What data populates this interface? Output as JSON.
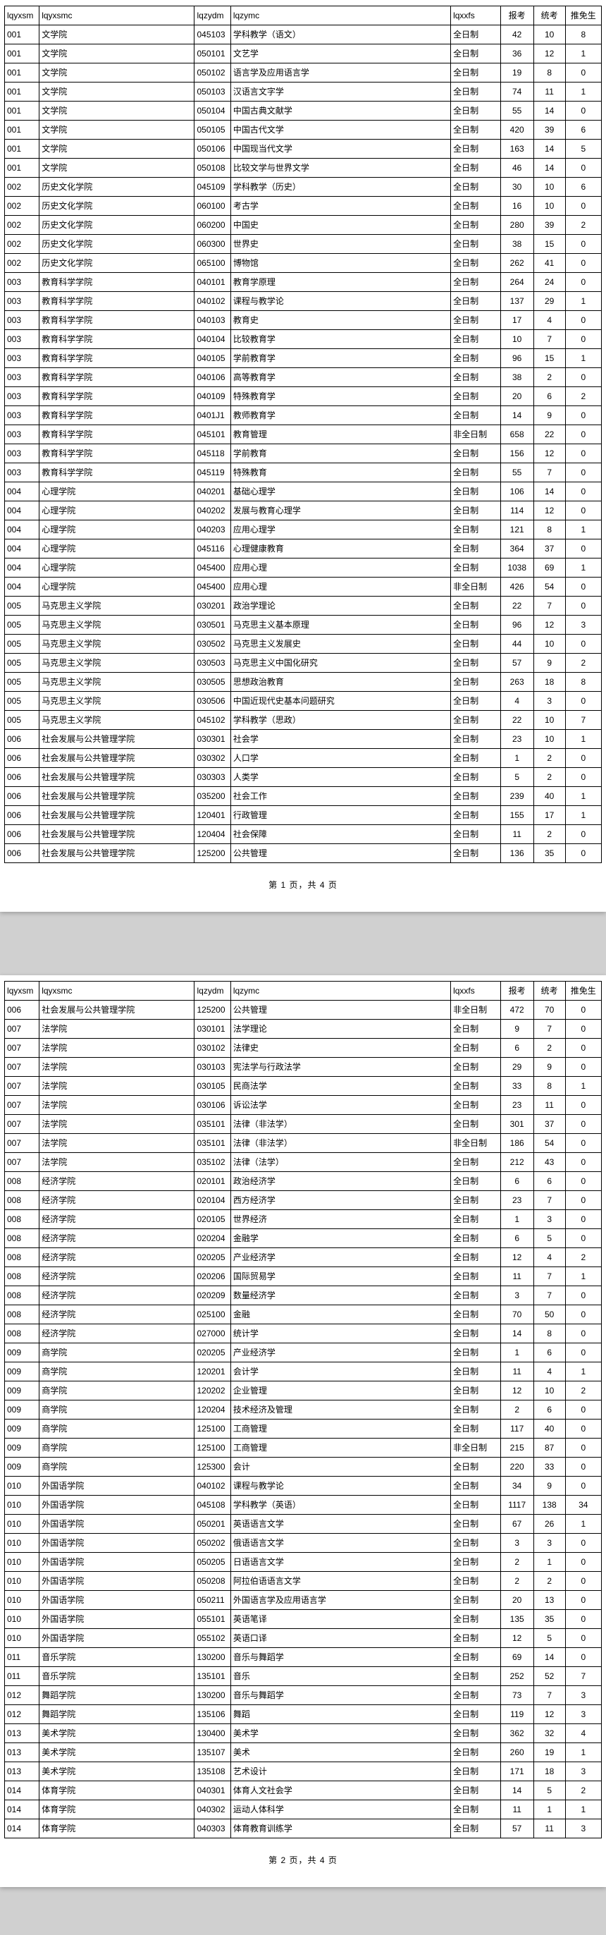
{
  "headers": {
    "lqyxsm": "lqyxsm",
    "lqyxsmc": "lqyxsmc",
    "lqzydm": "lqzydm",
    "lqzymc": "lqzymc",
    "lqxxfs": "lqxxfs",
    "baokao": "报考",
    "tongkao": "统考",
    "tuimiansheng": "推免生"
  },
  "footer": {
    "page1": "第 1 页，共 4 页",
    "page2": "第 2 页，共 4 页"
  },
  "page1_rows": [
    [
      "001",
      "文学院",
      "045103",
      "学科教学（语文）",
      "全日制",
      "42",
      "10",
      "8"
    ],
    [
      "001",
      "文学院",
      "050101",
      "文艺学",
      "全日制",
      "36",
      "12",
      "1"
    ],
    [
      "001",
      "文学院",
      "050102",
      "语言学及应用语言学",
      "全日制",
      "19",
      "8",
      "0"
    ],
    [
      "001",
      "文学院",
      "050103",
      "汉语言文字学",
      "全日制",
      "74",
      "11",
      "1"
    ],
    [
      "001",
      "文学院",
      "050104",
      "中国古典文献学",
      "全日制",
      "55",
      "14",
      "0"
    ],
    [
      "001",
      "文学院",
      "050105",
      "中国古代文学",
      "全日制",
      "420",
      "39",
      "6"
    ],
    [
      "001",
      "文学院",
      "050106",
      "中国现当代文学",
      "全日制",
      "163",
      "14",
      "5"
    ],
    [
      "001",
      "文学院",
      "050108",
      "比较文学与世界文学",
      "全日制",
      "46",
      "14",
      "0"
    ],
    [
      "002",
      "历史文化学院",
      "045109",
      "学科教学（历史）",
      "全日制",
      "30",
      "10",
      "6"
    ],
    [
      "002",
      "历史文化学院",
      "060100",
      "考古学",
      "全日制",
      "16",
      "10",
      "0"
    ],
    [
      "002",
      "历史文化学院",
      "060200",
      "中国史",
      "全日制",
      "280",
      "39",
      "2"
    ],
    [
      "002",
      "历史文化学院",
      "060300",
      "世界史",
      "全日制",
      "38",
      "15",
      "0"
    ],
    [
      "002",
      "历史文化学院",
      "065100",
      "博物馆",
      "全日制",
      "262",
      "41",
      "0"
    ],
    [
      "003",
      "教育科学学院",
      "040101",
      "教育学原理",
      "全日制",
      "264",
      "24",
      "0"
    ],
    [
      "003",
      "教育科学学院",
      "040102",
      "课程与教学论",
      "全日制",
      "137",
      "29",
      "1"
    ],
    [
      "003",
      "教育科学学院",
      "040103",
      "教育史",
      "全日制",
      "17",
      "4",
      "0"
    ],
    [
      "003",
      "教育科学学院",
      "040104",
      "比较教育学",
      "全日制",
      "10",
      "7",
      "0"
    ],
    [
      "003",
      "教育科学学院",
      "040105",
      "学前教育学",
      "全日制",
      "96",
      "15",
      "1"
    ],
    [
      "003",
      "教育科学学院",
      "040106",
      "高等教育学",
      "全日制",
      "38",
      "2",
      "0"
    ],
    [
      "003",
      "教育科学学院",
      "040109",
      "特殊教育学",
      "全日制",
      "20",
      "6",
      "2"
    ],
    [
      "003",
      "教育科学学院",
      "0401J1",
      "教师教育学",
      "全日制",
      "14",
      "9",
      "0"
    ],
    [
      "003",
      "教育科学学院",
      "045101",
      "教育管理",
      "非全日制",
      "658",
      "22",
      "0"
    ],
    [
      "003",
      "教育科学学院",
      "045118",
      "学前教育",
      "全日制",
      "156",
      "12",
      "0"
    ],
    [
      "003",
      "教育科学学院",
      "045119",
      "特殊教育",
      "全日制",
      "55",
      "7",
      "0"
    ],
    [
      "004",
      "心理学院",
      "040201",
      "基础心理学",
      "全日制",
      "106",
      "14",
      "0"
    ],
    [
      "004",
      "心理学院",
      "040202",
      "发展与教育心理学",
      "全日制",
      "114",
      "12",
      "0"
    ],
    [
      "004",
      "心理学院",
      "040203",
      "应用心理学",
      "全日制",
      "121",
      "8",
      "1"
    ],
    [
      "004",
      "心理学院",
      "045116",
      "心理健康教育",
      "全日制",
      "364",
      "37",
      "0"
    ],
    [
      "004",
      "心理学院",
      "045400",
      "应用心理",
      "全日制",
      "1038",
      "69",
      "1"
    ],
    [
      "004",
      "心理学院",
      "045400",
      "应用心理",
      "非全日制",
      "426",
      "54",
      "0"
    ],
    [
      "005",
      "马克思主义学院",
      "030201",
      "政治学理论",
      "全日制",
      "22",
      "7",
      "0"
    ],
    [
      "005",
      "马克思主义学院",
      "030501",
      "马克思主义基本原理",
      "全日制",
      "96",
      "12",
      "3"
    ],
    [
      "005",
      "马克思主义学院",
      "030502",
      "马克思主义发展史",
      "全日制",
      "44",
      "10",
      "0"
    ],
    [
      "005",
      "马克思主义学院",
      "030503",
      "马克思主义中国化研究",
      "全日制",
      "57",
      "9",
      "2"
    ],
    [
      "005",
      "马克思主义学院",
      "030505",
      "思想政治教育",
      "全日制",
      "263",
      "18",
      "8"
    ],
    [
      "005",
      "马克思主义学院",
      "030506",
      "中国近现代史基本问题研究",
      "全日制",
      "4",
      "3",
      "0"
    ],
    [
      "005",
      "马克思主义学院",
      "045102",
      "学科教学（思政）",
      "全日制",
      "22",
      "10",
      "7"
    ],
    [
      "006",
      "社会发展与公共管理学院",
      "030301",
      "社会学",
      "全日制",
      "23",
      "10",
      "1"
    ],
    [
      "006",
      "社会发展与公共管理学院",
      "030302",
      "人口学",
      "全日制",
      "1",
      "2",
      "0"
    ],
    [
      "006",
      "社会发展与公共管理学院",
      "030303",
      "人类学",
      "全日制",
      "5",
      "2",
      "0"
    ],
    [
      "006",
      "社会发展与公共管理学院",
      "035200",
      "社会工作",
      "全日制",
      "239",
      "40",
      "1"
    ],
    [
      "006",
      "社会发展与公共管理学院",
      "120401",
      "行政管理",
      "全日制",
      "155",
      "17",
      "1"
    ],
    [
      "006",
      "社会发展与公共管理学院",
      "120404",
      "社会保障",
      "全日制",
      "11",
      "2",
      "0"
    ],
    [
      "006",
      "社会发展与公共管理学院",
      "125200",
      "公共管理",
      "全日制",
      "136",
      "35",
      "0"
    ]
  ],
  "page2_rows": [
    [
      "006",
      "社会发展与公共管理学院",
      "125200",
      "公共管理",
      "非全日制",
      "472",
      "70",
      "0"
    ],
    [
      "007",
      "法学院",
      "030101",
      "法学理论",
      "全日制",
      "9",
      "7",
      "0"
    ],
    [
      "007",
      "法学院",
      "030102",
      "法律史",
      "全日制",
      "6",
      "2",
      "0"
    ],
    [
      "007",
      "法学院",
      "030103",
      "宪法学与行政法学",
      "全日制",
      "29",
      "9",
      "0"
    ],
    [
      "007",
      "法学院",
      "030105",
      "民商法学",
      "全日制",
      "33",
      "8",
      "1"
    ],
    [
      "007",
      "法学院",
      "030106",
      "诉讼法学",
      "全日制",
      "23",
      "11",
      "0"
    ],
    [
      "007",
      "法学院",
      "035101",
      "法律（非法学）",
      "全日制",
      "301",
      "37",
      "0"
    ],
    [
      "007",
      "法学院",
      "035101",
      "法律（非法学）",
      "非全日制",
      "186",
      "54",
      "0"
    ],
    [
      "007",
      "法学院",
      "035102",
      "法律（法学）",
      "全日制",
      "212",
      "43",
      "0"
    ],
    [
      "008",
      "经济学院",
      "020101",
      "政治经济学",
      "全日制",
      "6",
      "6",
      "0"
    ],
    [
      "008",
      "经济学院",
      "020104",
      "西方经济学",
      "全日制",
      "23",
      "7",
      "0"
    ],
    [
      "008",
      "经济学院",
      "020105",
      "世界经济",
      "全日制",
      "1",
      "3",
      "0"
    ],
    [
      "008",
      "经济学院",
      "020204",
      "金融学",
      "全日制",
      "6",
      "5",
      "0"
    ],
    [
      "008",
      "经济学院",
      "020205",
      "产业经济学",
      "全日制",
      "12",
      "4",
      "2"
    ],
    [
      "008",
      "经济学院",
      "020206",
      "国际贸易学",
      "全日制",
      "11",
      "7",
      "1"
    ],
    [
      "008",
      "经济学院",
      "020209",
      "数量经济学",
      "全日制",
      "3",
      "7",
      "0"
    ],
    [
      "008",
      "经济学院",
      "025100",
      "金融",
      "全日制",
      "70",
      "50",
      "0"
    ],
    [
      "008",
      "经济学院",
      "027000",
      "统计学",
      "全日制",
      "14",
      "8",
      "0"
    ],
    [
      "009",
      "商学院",
      "020205",
      "产业经济学",
      "全日制",
      "1",
      "6",
      "0"
    ],
    [
      "009",
      "商学院",
      "120201",
      "会计学",
      "全日制",
      "11",
      "4",
      "1"
    ],
    [
      "009",
      "商学院",
      "120202",
      "企业管理",
      "全日制",
      "12",
      "10",
      "2"
    ],
    [
      "009",
      "商学院",
      "120204",
      "技术经济及管理",
      "全日制",
      "2",
      "6",
      "0"
    ],
    [
      "009",
      "商学院",
      "125100",
      "工商管理",
      "全日制",
      "117",
      "40",
      "0"
    ],
    [
      "009",
      "商学院",
      "125100",
      "工商管理",
      "非全日制",
      "215",
      "87",
      "0"
    ],
    [
      "009",
      "商学院",
      "125300",
      "会计",
      "全日制",
      "220",
      "33",
      "0"
    ],
    [
      "010",
      "外国语学院",
      "040102",
      "课程与教学论",
      "全日制",
      "34",
      "9",
      "0"
    ],
    [
      "010",
      "外国语学院",
      "045108",
      "学科教学（英语）",
      "全日制",
      "1117",
      "138",
      "34"
    ],
    [
      "010",
      "外国语学院",
      "050201",
      "英语语言文学",
      "全日制",
      "67",
      "26",
      "1"
    ],
    [
      "010",
      "外国语学院",
      "050202",
      "俄语语言文学",
      "全日制",
      "3",
      "3",
      "0"
    ],
    [
      "010",
      "外国语学院",
      "050205",
      "日语语言文学",
      "全日制",
      "2",
      "1",
      "0"
    ],
    [
      "010",
      "外国语学院",
      "050208",
      "阿拉伯语语言文学",
      "全日制",
      "2",
      "2",
      "0"
    ],
    [
      "010",
      "外国语学院",
      "050211",
      "外国语言学及应用语言学",
      "全日制",
      "20",
      "13",
      "0"
    ],
    [
      "010",
      "外国语学院",
      "055101",
      "英语笔译",
      "全日制",
      "135",
      "35",
      "0"
    ],
    [
      "010",
      "外国语学院",
      "055102",
      "英语口译",
      "全日制",
      "12",
      "5",
      "0"
    ],
    [
      "011",
      "音乐学院",
      "130200",
      "音乐与舞蹈学",
      "全日制",
      "69",
      "14",
      "0"
    ],
    [
      "011",
      "音乐学院",
      "135101",
      "音乐",
      "全日制",
      "252",
      "52",
      "7"
    ],
    [
      "012",
      "舞蹈学院",
      "130200",
      "音乐与舞蹈学",
      "全日制",
      "73",
      "7",
      "3"
    ],
    [
      "012",
      "舞蹈学院",
      "135106",
      "舞蹈",
      "全日制",
      "119",
      "12",
      "3"
    ],
    [
      "013",
      "美术学院",
      "130400",
      "美术学",
      "全日制",
      "362",
      "32",
      "4"
    ],
    [
      "013",
      "美术学院",
      "135107",
      "美术",
      "全日制",
      "260",
      "19",
      "1"
    ],
    [
      "013",
      "美术学院",
      "135108",
      "艺术设计",
      "全日制",
      "171",
      "18",
      "3"
    ],
    [
      "014",
      "体育学院",
      "040301",
      "体育人文社会学",
      "全日制",
      "14",
      "5",
      "2"
    ],
    [
      "014",
      "体育学院",
      "040302",
      "运动人体科学",
      "全日制",
      "11",
      "1",
      "1"
    ],
    [
      "014",
      "体育学院",
      "040303",
      "体育教育训练学",
      "全日制",
      "57",
      "11",
      "3"
    ]
  ]
}
